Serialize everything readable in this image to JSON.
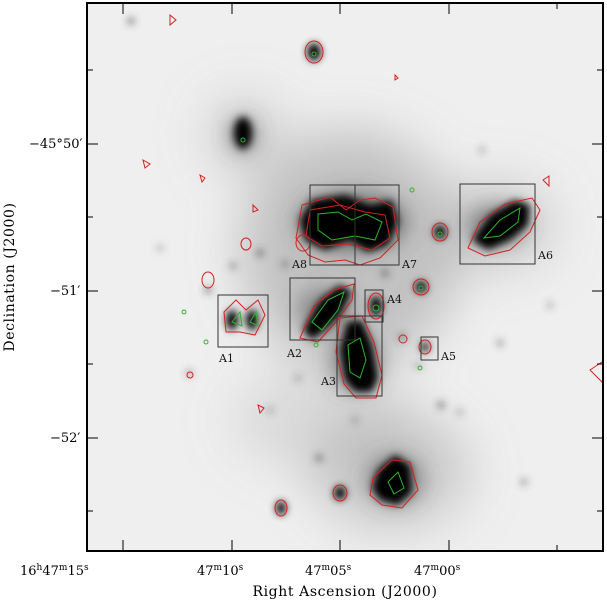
{
  "axes": {
    "x_label": "Right Ascension (J2000)",
    "y_label": "Declination (J2000)",
    "x_ticks": [
      {
        "h": "16",
        "m": "47",
        "s": "15"
      },
      {
        "m": "47",
        "s": "10"
      },
      {
        "m": "47",
        "s": "05"
      },
      {
        "m": "47",
        "s": "00"
      }
    ],
    "y_ticks": [
      {
        "deg": "−45°",
        "min": "50′"
      },
      {
        "deg": "−51′"
      },
      {
        "deg": "−52′"
      }
    ]
  },
  "regions": [
    {
      "label": "A1"
    },
    {
      "label": "A2"
    },
    {
      "label": "A3"
    },
    {
      "label": "A4"
    },
    {
      "label": "A5"
    },
    {
      "label": "A6"
    },
    {
      "label": "A7"
    },
    {
      "label": "A8"
    }
  ],
  "colors": {
    "contour_outer": "#d42020",
    "contour_inner": "#2cb52c",
    "box": "#333333",
    "frame": "#000000"
  }
}
